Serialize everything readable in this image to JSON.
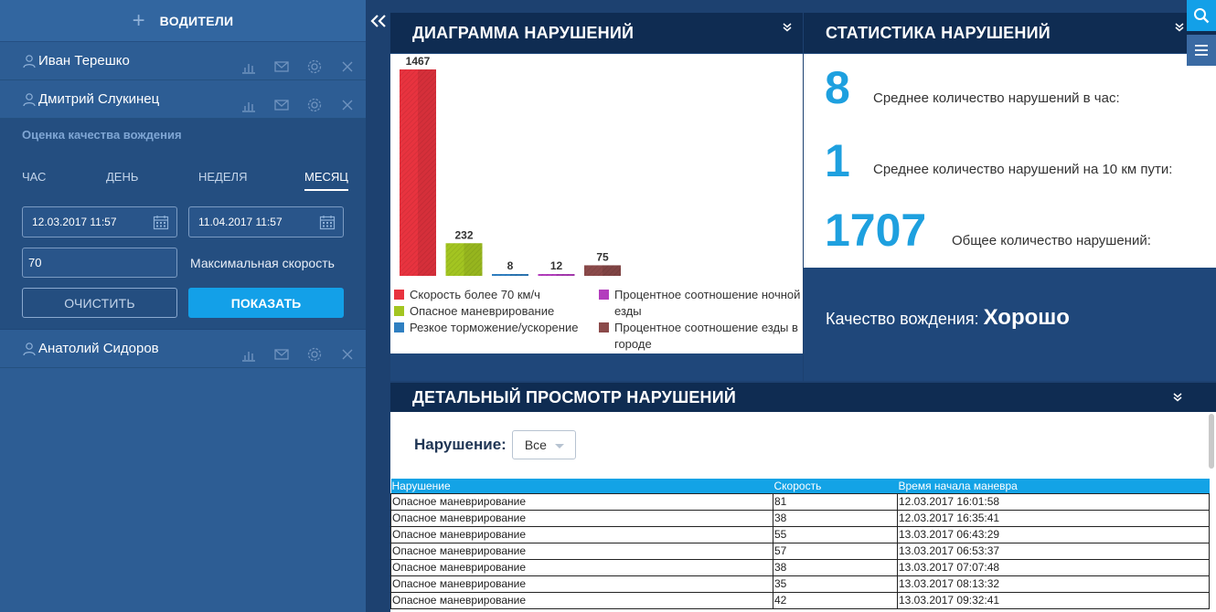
{
  "sidebar": {
    "header_title": "ВОДИТЕЛИ",
    "drivers": [
      {
        "name": "Иван Терешко"
      },
      {
        "name": "Дмитрий Слукинец"
      },
      {
        "name": "Анатолий Сидоров"
      }
    ],
    "panel": {
      "title": "Оценка качества вождения",
      "tabs": [
        "ЧАС",
        "ДЕНЬ",
        "НЕДЕЛЯ",
        "МЕСЯЦ"
      ],
      "active_tab": "МЕСЯЦ",
      "date_from": "12.03.2017 11:57",
      "date_to": "11.04.2017 11:57",
      "max_speed_value": "70",
      "max_speed_label": "Максимальная скорость",
      "clear_label": "ОЧИСТИТЬ",
      "show_label": "ПОКАЗАТЬ"
    }
  },
  "chart_panel": {
    "title": "ДИАГРАММА НАРУШЕНИЙ",
    "legend": [
      "Скорость более 70 км/ч",
      "Опасное маневрирование",
      "Резкое торможение/ускорение",
      "Процентное соотношение ночной езды",
      "Процентное соотношение езды в городе"
    ]
  },
  "chart_data": {
    "type": "bar",
    "categories": [
      "Скорость более 70 км/ч",
      "Опасное маневрирование",
      "Резкое торможение/ускорение",
      "Процентное соотношение ночной езды",
      "Процентное соотношение езды в городе"
    ],
    "values": [
      1467,
      232,
      8,
      12,
      75
    ],
    "data_labels": [
      "1467",
      "232",
      "8",
      "12",
      "75"
    ],
    "colors": [
      "#e8333f",
      "#a3c521",
      "#2f7fc1",
      "#b33dbd",
      "#8b4a4a"
    ],
    "ylim": [
      0,
      1467
    ],
    "grid": false,
    "legend_position": "bottom"
  },
  "stats_panel": {
    "title": "СТАТИСТИКА НАРУШЕНИЙ",
    "avg_per_hour_value": "8",
    "avg_per_hour_label": "Среднее количество нарушений в час:",
    "avg_per_10km_value": "1",
    "avg_per_10km_label": "Среднее количество нарушений на 10 км пути:",
    "total_value": "1707",
    "total_label": "Общее количество нарушений:",
    "quality_label": "Качество вождения:",
    "quality_value": "Хорошо"
  },
  "detail_panel": {
    "title": "ДЕТАЛЬНЫЙ ПРОСМОТР НАРУШЕНИЙ",
    "filter_label": "Нарушение:",
    "filter_value": "Все",
    "columns": [
      "Нарушение",
      "Скорость",
      "Время начала маневра"
    ],
    "rows": [
      [
        "Опасное маневрирование",
        "81",
        "12.03.2017 16:01:58"
      ],
      [
        "Опасное маневрирование",
        "38",
        "12.03.2017 16:35:41"
      ],
      [
        "Опасное маневрирование",
        "55",
        "13.03.2017 06:43:29"
      ],
      [
        "Опасное маневрирование",
        "57",
        "13.03.2017 06:53:37"
      ],
      [
        "Опасное маневрирование",
        "38",
        "13.03.2017 07:07:48"
      ],
      [
        "Опасное маневрирование",
        "35",
        "13.03.2017 08:13:32"
      ],
      [
        "Опасное маневрирование",
        "42",
        "13.03.2017 09:32:41"
      ]
    ]
  },
  "colors": {
    "accent": "#13a0e8",
    "sidebar": "#2d5d94",
    "header_dark": "#0f2c52",
    "stat_number": "#1ea0df"
  }
}
